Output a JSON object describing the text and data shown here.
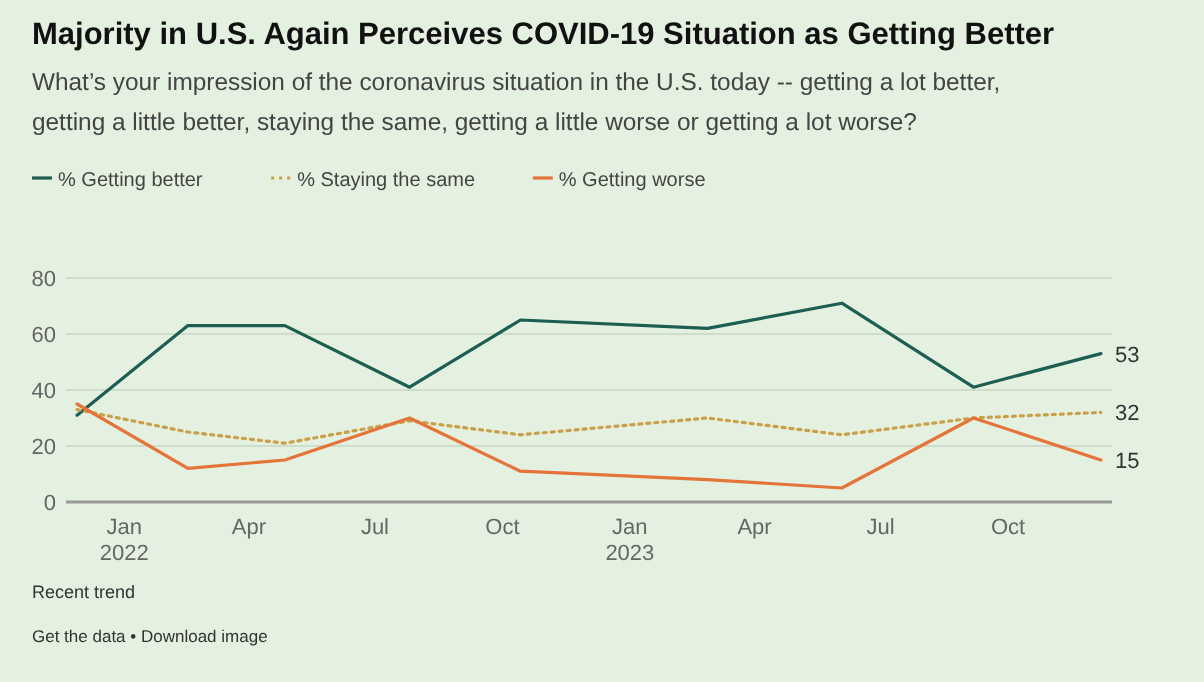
{
  "chart_data": {
    "type": "line",
    "title": "Majority in U.S. Again Perceives COVID-19 Situation as Getting Better",
    "subtitle": "What’s your impression of the coronavirus situation in the U.S. today -- getting a lot better, getting a little better, staying the same, getting a little worse or getting a lot worse?",
    "x": [
      "2021-11-28",
      "2022-02-16",
      "2022-04-27",
      "2022-07-26",
      "2022-10-14",
      "2023-02-26",
      "2023-06-03",
      "2023-09-06",
      "2023-12-07"
    ],
    "series": [
      {
        "name": "% Getting better",
        "color": "#1d5e52",
        "line_style": "solid",
        "values": [
          31,
          63,
          63,
          41,
          65,
          62,
          71,
          41,
          53
        ],
        "value_labels": [
          null,
          null,
          null,
          null,
          null,
          null,
          null,
          null,
          "53"
        ]
      },
      {
        "name": "% Staying the same",
        "color": "#c9a04a",
        "line_style": "dotted",
        "values": [
          33,
          25,
          21,
          29,
          24,
          30,
          24,
          30,
          32
        ],
        "value_labels": [
          null,
          null,
          null,
          null,
          null,
          null,
          null,
          null,
          "32"
        ]
      },
      {
        "name": "% Getting worse",
        "color": "#e4743a",
        "line_style": "solid",
        "values": [
          35,
          12,
          15,
          30,
          11,
          8,
          5,
          30,
          15
        ],
        "value_labels": [
          null,
          null,
          null,
          null,
          null,
          null,
          null,
          null,
          "15"
        ]
      }
    ],
    "xlim": [
      "2021-11-20",
      "2023-12-15"
    ],
    "xticks": [
      {
        "value": "2022-01-01",
        "label": "Jan 2022"
      },
      {
        "value": "2022-04-01",
        "label": "Apr"
      },
      {
        "value": "2022-07-01",
        "label": "Jul"
      },
      {
        "value": "2022-10-01",
        "label": "Oct"
      },
      {
        "value": "2023-01-01",
        "label": "Jan 2023"
      },
      {
        "value": "2023-04-01",
        "label": "Apr"
      },
      {
        "value": "2023-07-01",
        "label": "Jul"
      },
      {
        "value": "2023-10-01",
        "label": "Oct"
      }
    ],
    "ylim": [
      0,
      80
    ],
    "yticks": [
      0,
      20,
      40,
      60,
      80
    ],
    "grid": "y",
    "legend": "top left",
    "annotations": [
      "Recent trend",
      "Get the data • Download image"
    ]
  }
}
